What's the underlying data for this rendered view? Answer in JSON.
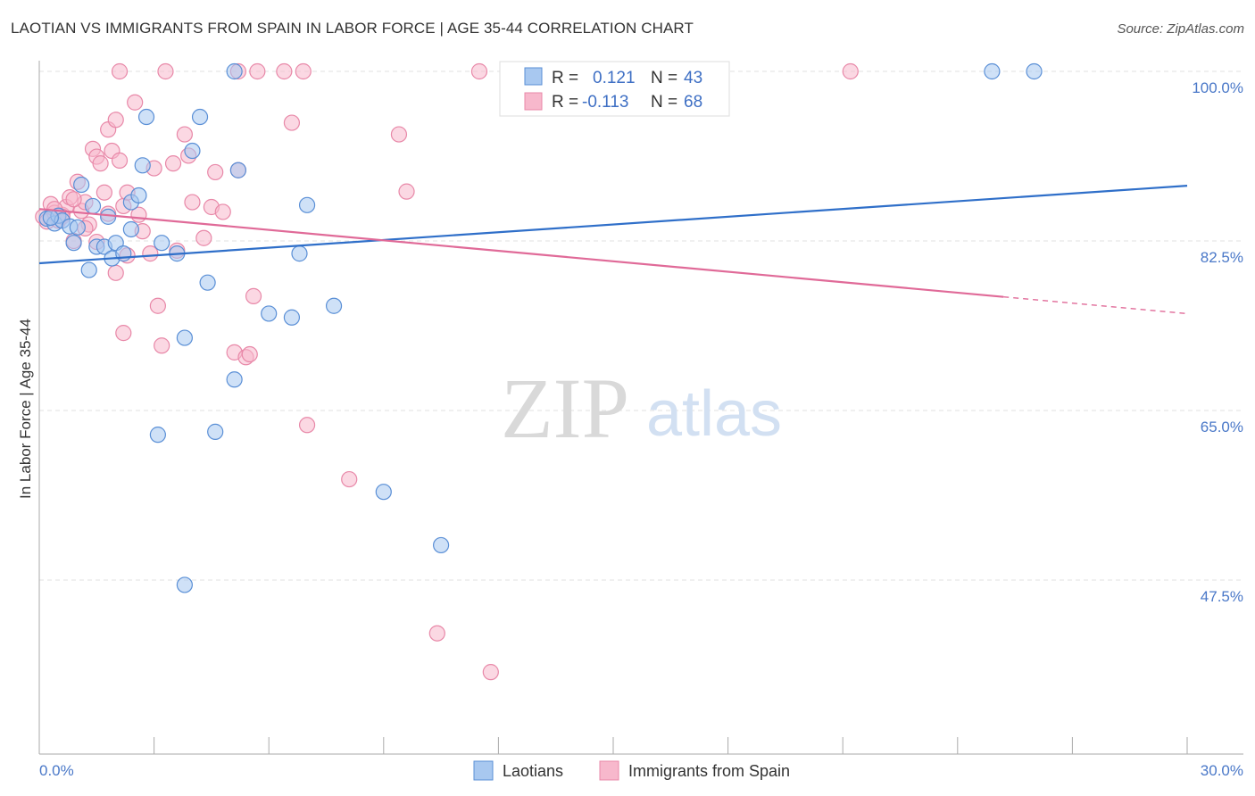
{
  "title": "LAOTIAN VS IMMIGRANTS FROM SPAIN IN LABOR FORCE | AGE 35-44 CORRELATION CHART",
  "source": "Source: ZipAtlas.com",
  "watermark": {
    "zip": "ZIP",
    "atlas": "atlas"
  },
  "colors": {
    "blue_fill": "#a8c8f0",
    "blue_stroke": "#5a8fd6",
    "blue_line": "#2f6fc9",
    "pink_fill": "#f7b8cc",
    "pink_stroke": "#e888a8",
    "pink_line": "#e06a98",
    "tick_label": "#4a78c8",
    "grid": "#e2e2e2"
  },
  "legend": {
    "r_label": "R =",
    "n_label": "N =",
    "blue": {
      "r": "0.121",
      "n": "43"
    },
    "pink": {
      "r": "-0.113",
      "n": "68"
    }
  },
  "chart_data": {
    "type": "scatter",
    "ylabel": "In Labor Force | Age 35-44",
    "xlim": [
      0,
      30
    ],
    "ylim": [
      32,
      102
    ],
    "x_tick_labels": [
      "0.0%",
      "30.0%"
    ],
    "y_ticks": [
      47.5,
      65.0,
      82.5,
      100.0
    ],
    "y_tick_labels": [
      "47.5%",
      "65.0%",
      "82.5%",
      "100.0%"
    ],
    "grid": true,
    "legend_position": "top-center",
    "series": [
      {
        "name": "Laotians",
        "color": "blue",
        "trend": {
          "x": [
            0,
            30
          ],
          "y": [
            80.2,
            88.2
          ],
          "dashed_from": null
        },
        "points": [
          [
            0.2,
            84.8
          ],
          [
            0.4,
            84.3
          ],
          [
            0.5,
            85.1
          ],
          [
            0.6,
            84.6
          ],
          [
            0.8,
            84.0
          ],
          [
            0.9,
            82.3
          ],
          [
            1.0,
            83.9
          ],
          [
            1.1,
            88.3
          ],
          [
            1.3,
            79.5
          ],
          [
            1.4,
            86.1
          ],
          [
            1.5,
            81.9
          ],
          [
            1.7,
            81.9
          ],
          [
            1.8,
            85.0
          ],
          [
            1.9,
            80.7
          ],
          [
            2.0,
            82.3
          ],
          [
            2.2,
            81.2
          ],
          [
            2.4,
            86.5
          ],
          [
            2.4,
            83.7
          ],
          [
            2.6,
            87.2
          ],
          [
            2.7,
            90.3
          ],
          [
            2.8,
            95.3
          ],
          [
            3.1,
            62.5
          ],
          [
            3.2,
            82.3
          ],
          [
            3.6,
            81.2
          ],
          [
            3.8,
            47.0
          ],
          [
            3.8,
            72.5
          ],
          [
            4.0,
            91.8
          ],
          [
            4.2,
            95.3
          ],
          [
            4.4,
            78.2
          ],
          [
            4.6,
            62.8
          ],
          [
            5.1,
            100.0
          ],
          [
            5.1,
            68.2
          ],
          [
            5.2,
            89.8
          ],
          [
            6.0,
            75.0
          ],
          [
            6.6,
            74.6
          ],
          [
            6.8,
            81.2
          ],
          [
            7.0,
            86.2
          ],
          [
            7.7,
            75.8
          ],
          [
            9.0,
            56.6
          ],
          [
            10.5,
            51.1
          ],
          [
            24.9,
            100.0
          ],
          [
            26.0,
            100.0
          ],
          [
            0.3,
            84.9
          ]
        ]
      },
      {
        "name": "Immigrants from Spain",
        "color": "pink",
        "trend": {
          "x": [
            0,
            30
          ],
          "y": [
            85.8,
            75.0
          ],
          "dashed_from": 25.2
        },
        "points": [
          [
            0.1,
            85.0
          ],
          [
            0.2,
            84.5
          ],
          [
            0.3,
            86.3
          ],
          [
            0.4,
            85.4
          ],
          [
            0.5,
            84.6
          ],
          [
            0.6,
            85.2
          ],
          [
            0.7,
            86.0
          ],
          [
            0.8,
            87.0
          ],
          [
            0.9,
            82.5
          ],
          [
            1.0,
            88.6
          ],
          [
            1.1,
            85.6
          ],
          [
            1.2,
            86.5
          ],
          [
            1.3,
            84.2
          ],
          [
            1.4,
            92.0
          ],
          [
            1.5,
            91.2
          ],
          [
            1.6,
            90.5
          ],
          [
            1.7,
            87.5
          ],
          [
            1.8,
            94.0
          ],
          [
            1.8,
            85.3
          ],
          [
            1.9,
            91.8
          ],
          [
            2.0,
            95.0
          ],
          [
            2.0,
            79.2
          ],
          [
            2.1,
            90.8
          ],
          [
            2.2,
            86.1
          ],
          [
            2.2,
            73.0
          ],
          [
            2.3,
            87.5
          ],
          [
            2.3,
            81.0
          ],
          [
            2.5,
            96.8
          ],
          [
            2.6,
            85.2
          ],
          [
            2.7,
            83.5
          ],
          [
            2.9,
            81.2
          ],
          [
            3.0,
            90.0
          ],
          [
            3.1,
            75.8
          ],
          [
            3.2,
            71.7
          ],
          [
            3.3,
            100.0
          ],
          [
            3.5,
            90.5
          ],
          [
            3.6,
            81.5
          ],
          [
            3.8,
            93.5
          ],
          [
            3.9,
            91.3
          ],
          [
            4.0,
            86.5
          ],
          [
            4.3,
            82.8
          ],
          [
            4.5,
            86.0
          ],
          [
            4.6,
            89.6
          ],
          [
            4.8,
            85.5
          ],
          [
            5.1,
            71.0
          ],
          [
            5.2,
            89.8
          ],
          [
            5.2,
            100.0
          ],
          [
            5.4,
            70.5
          ],
          [
            5.5,
            70.8
          ],
          [
            5.6,
            76.8
          ],
          [
            5.7,
            100.0
          ],
          [
            6.4,
            100.0
          ],
          [
            6.6,
            94.7
          ],
          [
            6.9,
            100.0
          ],
          [
            7.0,
            63.5
          ],
          [
            8.1,
            57.9
          ],
          [
            9.4,
            93.5
          ],
          [
            9.6,
            87.6
          ],
          [
            10.4,
            42.0
          ],
          [
            11.5,
            100.0
          ],
          [
            11.8,
            38.0
          ],
          [
            21.2,
            100.0
          ],
          [
            1.5,
            82.4
          ],
          [
            2.1,
            100.0
          ],
          [
            0.6,
            85.0
          ],
          [
            0.9,
            86.8
          ],
          [
            1.2,
            83.8
          ],
          [
            0.4,
            85.8
          ]
        ]
      }
    ]
  }
}
